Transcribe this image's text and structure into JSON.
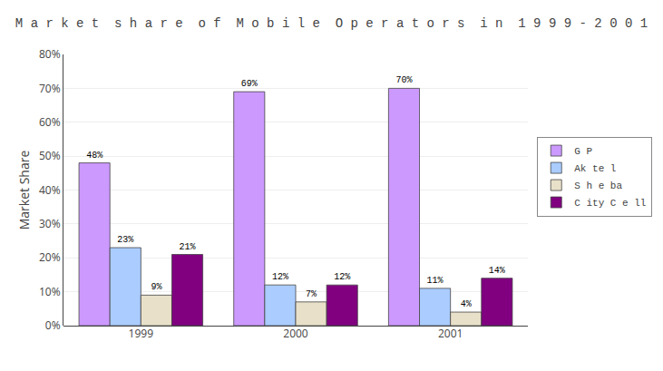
{
  "chart_data": {
    "type": "bar",
    "title": "M a r k e t  s h a r e  o f  M o b i l e  O p e r a t o r s  i n  1 9 9 9 - 2 0 0 1",
    "ylabel": "Market Share",
    "categories": [
      "1999",
      "2000",
      "2001"
    ],
    "series": [
      {
        "name": "G P",
        "color": "#cc99ff",
        "values": [
          48,
          69,
          70
        ],
        "value_labels": [
          "48%",
          "69%",
          "70%"
        ]
      },
      {
        "name": "Ak te l",
        "color": "#aaccff",
        "values": [
          23,
          12,
          11
        ],
        "value_labels": [
          "23%",
          "12%",
          "11%"
        ]
      },
      {
        "name": "S h e ba",
        "color": "#e8e0c8",
        "values": [
          9,
          7,
          4
        ],
        "value_labels": [
          "9%",
          "7%",
          "4%"
        ]
      },
      {
        "name": "C ity C e ll",
        "color": "#800080",
        "values": [
          21,
          12,
          14
        ],
        "value_labels": [
          "21%",
          "12%",
          "14%"
        ]
      }
    ],
    "ylim": [
      0,
      80
    ],
    "yticks": [
      {
        "value": 0,
        "label": "0%"
      },
      {
        "value": 10,
        "label": "10%"
      },
      {
        "value": 20,
        "label": "20%"
      },
      {
        "value": 30,
        "label": "30%"
      },
      {
        "value": 40,
        "label": "40%"
      },
      {
        "value": 50,
        "label": "50%"
      },
      {
        "value": 60,
        "label": "60%"
      },
      {
        "value": 70,
        "label": "70%"
      },
      {
        "value": 80,
        "label": "80%"
      }
    ],
    "grid": true,
    "legend": "right",
    "data_labels": true
  }
}
